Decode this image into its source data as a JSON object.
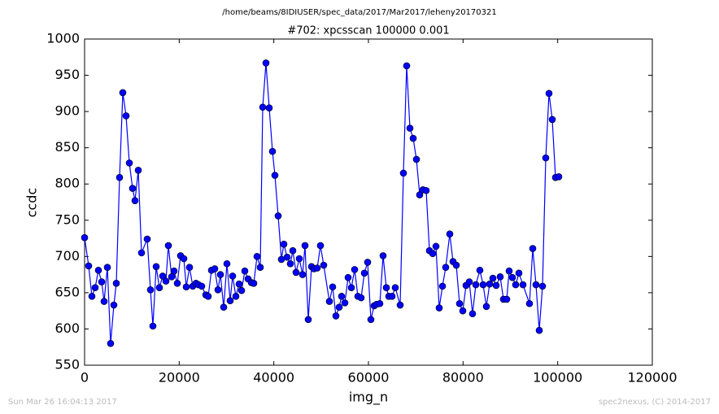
{
  "chart_data": {
    "type": "line",
    "title": "/home/beams/8IDIUSER/spec_data/2017/Mar2017/leheny20170321",
    "subtitle": "#702: xpcsscan 100000 0.001",
    "xlabel": "img_n",
    "ylabel": "ccdc",
    "annotations": [
      "Sun Mar 26 16:04:13 2017",
      "spec2nexus, (C) 2014-2017"
    ],
    "xlim": [
      0,
      120000
    ],
    "xticks": [
      0,
      20000,
      40000,
      60000,
      80000,
      100000,
      120000
    ],
    "ylim": [
      550,
      1000
    ],
    "yticks": [
      550,
      600,
      650,
      700,
      750,
      800,
      850,
      900,
      950,
      1000
    ],
    "grid": false,
    "x": [
      0,
      860,
      1547,
      2235,
      2923,
      3610,
      4126,
      4814,
      5501,
      6189,
      6705,
      7393,
      8080,
      8768,
      9456,
      10143,
      10659,
      11347,
      12034,
      13238,
      13926,
      14441,
      15129,
      15817,
      16504,
      17192,
      17708,
      18395,
      18911,
      19599,
      20286,
      20974,
      21490,
      22178,
      22865,
      23553,
      24069,
      24757,
      25616,
      26132,
      26820,
      27507,
      28195,
      28711,
      29398,
      30086,
      30774,
      31289,
      31977,
      32665,
      33181,
      33868,
      34556,
      35244,
      35759,
      36447,
      37135,
      37650,
      38338,
      39026,
      39713,
      40229,
      40917,
      41605,
      42120,
      42808,
      43496,
      44012,
      44699,
      45387,
      46075,
      46590,
      47278,
      47966,
      48481,
      49169,
      49857,
      50544,
      51748,
      52436,
      53123,
      53811,
      54327,
      55014,
      55702,
      56390,
      57077,
      57765,
      58453,
      59140,
      59828,
      60516,
      61203,
      61719,
      62407,
      63095,
      63782,
      64298,
      64986,
      65673,
      66705,
      67393,
      68080,
      68768,
      69456,
      70143,
      70831,
      71519,
      72206,
      72894,
      73582,
      74269,
      74957,
      75645,
      76332,
      77192,
      77879,
      78567,
      79255,
      79942,
      80630,
      81318,
      82005,
      82693,
      83553,
      84240,
      84928,
      85616,
      86303,
      86991,
      87851,
      88538,
      89226,
      89742,
      90430,
      91117,
      91805,
      92664,
      94040,
      94728,
      95415,
      96103,
      96791,
      97478,
      98166,
      98854,
      99541,
      100229
    ],
    "series": [
      {
        "name": "ccdc",
        "color": "#0000ff",
        "values": [
          726,
          687,
          645,
          657,
          681,
          665,
          638,
          685,
          580,
          633,
          663,
          809,
          926,
          894,
          829,
          794,
          777,
          819,
          705,
          724,
          654,
          604,
          686,
          657,
          673,
          666,
          715,
          672,
          680,
          663,
          701,
          697,
          658,
          685,
          659,
          663,
          661,
          659,
          647,
          645,
          681,
          683,
          654,
          675,
          630,
          690,
          639,
          673,
          645,
          662,
          653,
          680,
          669,
          664,
          663,
          700,
          685,
          906,
          967,
          905,
          845,
          812,
          756,
          696,
          717,
          699,
          690,
          708,
          678,
          697,
          675,
          715,
          613,
          686,
          683,
          684,
          715,
          688,
          638,
          658,
          618,
          630,
          645,
          636,
          671,
          657,
          682,
          645,
          643,
          677,
          692,
          613,
          632,
          634,
          635,
          701,
          657,
          645,
          645,
          657,
          633,
          815,
          963,
          877,
          863,
          834,
          785,
          792,
          791,
          708,
          704,
          714,
          629,
          659,
          685,
          731,
          693,
          688,
          635,
          625,
          660,
          665,
          621,
          661,
          681,
          661,
          631,
          662,
          670,
          660,
          672,
          641,
          641,
          680,
          671,
          661,
          677,
          661,
          635,
          711,
          661,
          598,
          659,
          836,
          925,
          889,
          809,
          810
        ]
      }
    ]
  }
}
